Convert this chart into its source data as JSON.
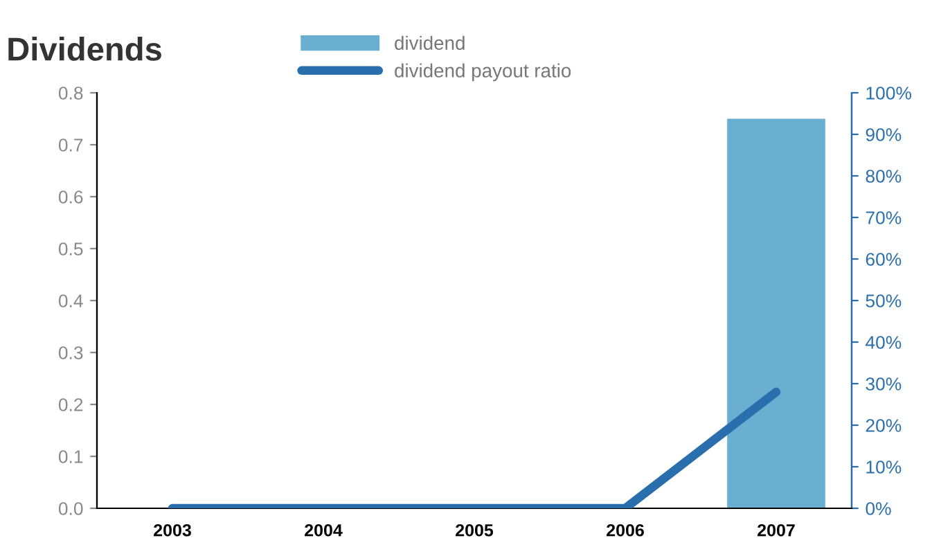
{
  "chart_data": {
    "type": "bar",
    "title": "Dividends",
    "categories": [
      "2003",
      "2004",
      "2005",
      "2006",
      "2007"
    ],
    "series": [
      {
        "name": "dividend",
        "color": "#6aaed0",
        "values": [
          null,
          null,
          null,
          null,
          0.75
        ]
      },
      {
        "name": "dividend payout ratio",
        "type": "line",
        "axis": "y2",
        "color": "#2a6fad",
        "values": [
          0,
          0,
          0,
          0,
          28
        ]
      }
    ],
    "ylim": [
      0,
      0.8
    ],
    "yticks": [
      {
        "value": 0,
        "label": "0.0"
      },
      0.1,
      0.2,
      0.3,
      0.4,
      0.5,
      0.6,
      0.7,
      0.8
    ],
    "y2lim": [
      0,
      100
    ],
    "y2ticks": [
      {
        "value": 0,
        "label": "0%"
      },
      {
        "value": 10,
        "label": "10%"
      },
      {
        "value": 20,
        "label": "20%"
      },
      {
        "value": 30,
        "label": "30%"
      },
      {
        "value": 40,
        "label": "40%"
      },
      {
        "value": 50,
        "label": "50%"
      },
      {
        "value": 60,
        "label": "60%"
      },
      {
        "value": 70,
        "label": "70%"
      },
      {
        "value": 80,
        "label": "80%"
      },
      {
        "value": 90,
        "label": "90%"
      },
      {
        "value": 100,
        "label": "100%"
      }
    ],
    "legend": "top",
    "grid": false
  }
}
